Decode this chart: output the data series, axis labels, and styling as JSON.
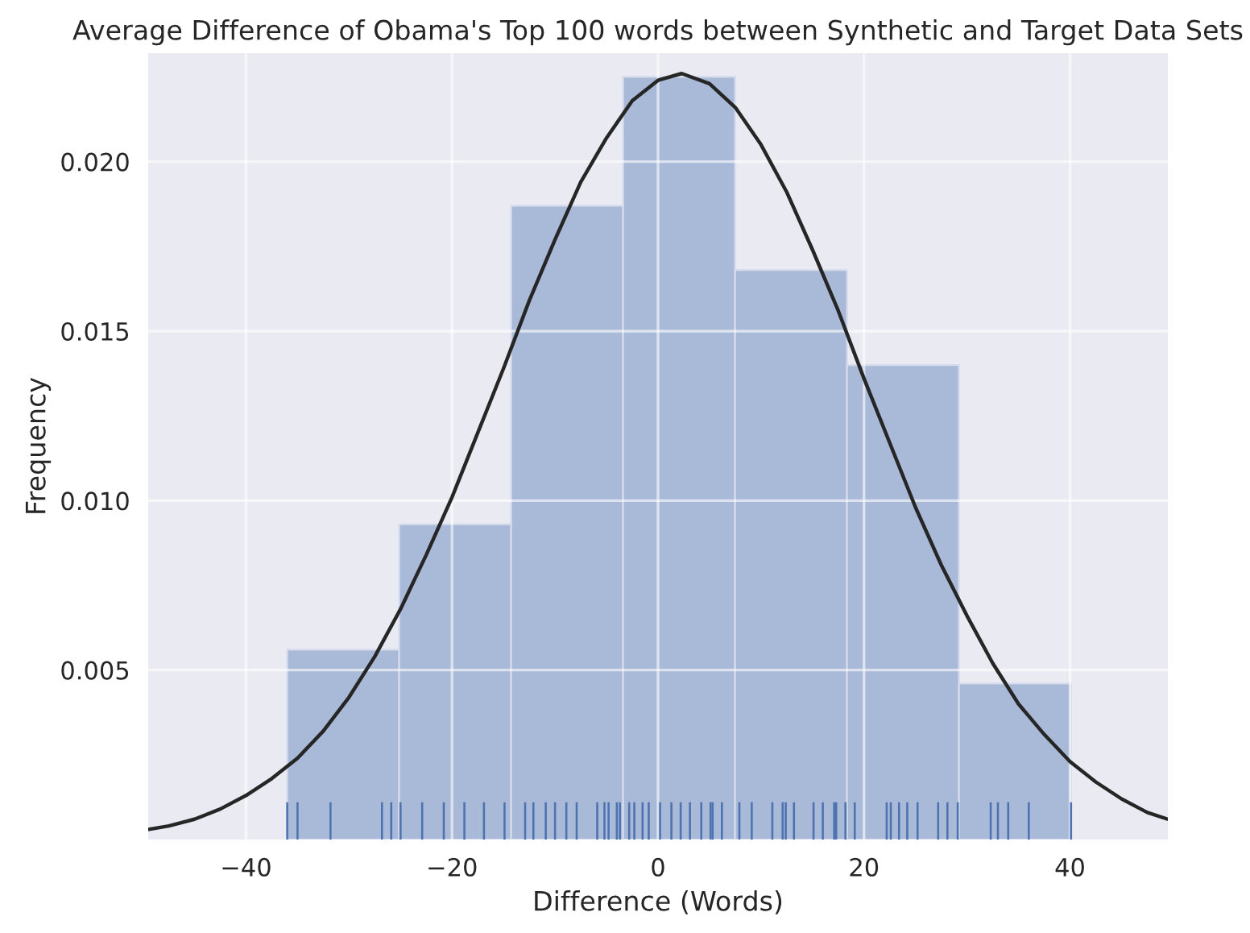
{
  "chart_data": {
    "type": "histogram",
    "title": "Average Difference of Obama's Top 100 words between Synthetic and Target Data Sets",
    "xlabel": "Difference (Words)",
    "ylabel": "Frequency",
    "bins": [
      -36.0,
      -25.13,
      -14.26,
      -3.39,
      7.48,
      18.35,
      29.22,
      40.1
    ],
    "values": [
      0.0056,
      0.0093,
      0.0187,
      0.0225,
      0.0168,
      0.014,
      0.0046
    ],
    "color": "#a9b9d8",
    "series": [
      {
        "type": "line",
        "color": "#262626",
        "x": [
          -49.5,
          -47.5,
          -45,
          -42.5,
          -40,
          -37.5,
          -35,
          -32.5,
          -30,
          -27.5,
          -25,
          -22.5,
          -20,
          -17.5,
          -15,
          -12.5,
          -10,
          -7.5,
          -5,
          -2.5,
          0,
          2.3,
          5,
          7.5,
          10,
          12.5,
          15,
          17.5,
          20,
          22.5,
          25,
          27.5,
          30,
          32.5,
          35,
          37.5,
          40,
          42.5,
          45,
          47.5,
          49.5
        ],
        "values": [
          0.0003,
          0.0004,
          0.0006,
          0.0009,
          0.0013,
          0.0018,
          0.0024,
          0.0032,
          0.0042,
          0.0054,
          0.0068,
          0.0084,
          0.0101,
          0.012,
          0.0139,
          0.0159,
          0.0177,
          0.0194,
          0.0207,
          0.0218,
          0.0224,
          0.0226,
          0.0223,
          0.0216,
          0.0205,
          0.0191,
          0.0174,
          0.0156,
          0.0136,
          0.0117,
          0.0098,
          0.0081,
          0.0066,
          0.0052,
          0.004,
          0.0031,
          0.0023,
          0.0017,
          0.0012,
          0.0008,
          0.0006
        ]
      },
      {
        "type": "bar",
        "color": "#4c72b0",
        "x": [
          -36.0,
          -35.0,
          -31.8,
          -26.8,
          -25.9,
          -25.0,
          -22.9,
          -20.8,
          -18.8,
          -16.9,
          -14.9,
          -12.9,
          -12.1,
          -10.9,
          -10.0,
          -8.9,
          -7.9,
          -5.9,
          -5.2,
          -4.8,
          -4.0,
          -3.7,
          -2.8,
          -2.3,
          -1.5,
          -0.9,
          0.2,
          1.3,
          2.2,
          3.1,
          4.2,
          5.1,
          5.3,
          6.2,
          7.9,
          9.1,
          11.1,
          12.1,
          12.4,
          13.2,
          15.1,
          16.0,
          17.1,
          17.3,
          18.2,
          19.1,
          22.2,
          22.6,
          23.4,
          24.2,
          25.2,
          27.2,
          28.1,
          29.1,
          32.3,
          33.0,
          34.0,
          36.0,
          40.1
        ],
        "values": [
          0.0011,
          0.0011,
          0.0011,
          0.0011,
          0.0011,
          0.0011,
          0.0011,
          0.0011,
          0.0011,
          0.0011,
          0.0011,
          0.0011,
          0.0011,
          0.0011,
          0.0011,
          0.0011,
          0.0011,
          0.0011,
          0.0011,
          0.0011,
          0.0011,
          0.0011,
          0.0011,
          0.0011,
          0.0011,
          0.0011,
          0.0011,
          0.0011,
          0.0011,
          0.0011,
          0.0011,
          0.0011,
          0.0011,
          0.0011,
          0.0011,
          0.0011,
          0.0011,
          0.0011,
          0.0011,
          0.0011,
          0.0011,
          0.0011,
          0.0011,
          0.0011,
          0.0011,
          0.0011,
          0.0011,
          0.0011,
          0.0011,
          0.0011,
          0.0011,
          0.0011,
          0.0011,
          0.0011,
          0.0011,
          0.0011,
          0.0011,
          0.0011,
          0.0011
        ]
      }
    ],
    "xlim": [
      -49.5,
      49.5
    ],
    "ylim": [
      0,
      0.0232
    ],
    "xticks": [
      {
        "value": -40,
        "label": "−40"
      },
      {
        "value": -20,
        "label": "−20"
      },
      0,
      20,
      40
    ],
    "yticks": [
      {
        "value": 0.005,
        "label": "0.005"
      },
      {
        "value": 0.01,
        "label": "0.010"
      },
      {
        "value": 0.015,
        "label": "0.015"
      },
      {
        "value": 0.02,
        "label": "0.020"
      }
    ],
    "grid": true
  }
}
